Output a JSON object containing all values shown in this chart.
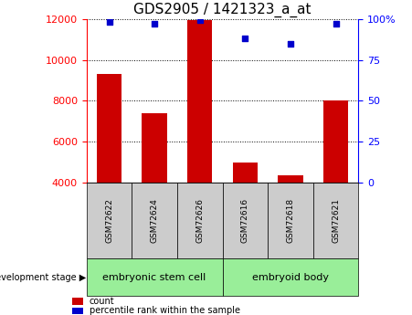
{
  "title": "GDS2905 / 1421323_a_at",
  "samples": [
    "GSM72622",
    "GSM72624",
    "GSM72626",
    "GSM72616",
    "GSM72618",
    "GSM72621"
  ],
  "counts": [
    9300,
    7400,
    11950,
    5000,
    4350,
    8000
  ],
  "percentile_ranks": [
    98,
    97,
    99,
    88,
    85,
    97
  ],
  "ylim_left": [
    4000,
    12000
  ],
  "ylim_right": [
    0,
    100
  ],
  "bar_color": "#cc0000",
  "dot_color": "#0000cc",
  "yticks_left": [
    4000,
    6000,
    8000,
    10000,
    12000
  ],
  "yticks_right": [
    0,
    25,
    50,
    75,
    100
  ],
  "group1_label": "embryonic stem cell",
  "group2_label": "embryoid body",
  "group1_indices": [
    0,
    1,
    2
  ],
  "group2_indices": [
    3,
    4,
    5
  ],
  "group_bg_color": "#99ee99",
  "tick_bg_color": "#cccccc",
  "xlabel_stage": "development stage",
  "legend_count_label": "count",
  "legend_percentile_label": "percentile rank within the sample",
  "title_fontsize": 11,
  "axis_fontsize": 8,
  "group_label_fontsize": 8,
  "sample_fontsize": 6.5
}
